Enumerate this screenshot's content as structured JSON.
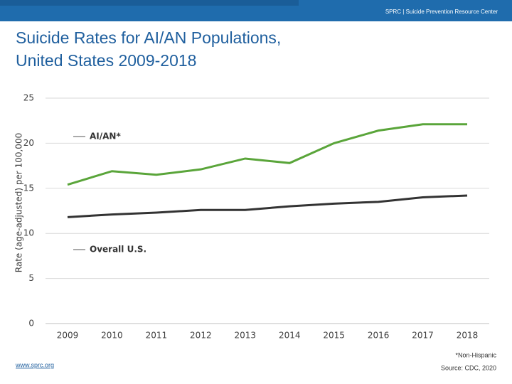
{
  "header": {
    "org": "SPRC  |  Suicide Prevention Resource Center"
  },
  "chart_data": {
    "type": "line",
    "title": "Suicide Rates for AI/AN Populations,",
    "subtitle": "United States 2009-2018",
    "y_label": "Rate (age-adjusted) per 100,000",
    "categories": [
      "2009",
      "2010",
      "2011",
      "2012",
      "2013",
      "2014",
      "2015",
      "2016",
      "2017",
      "2018"
    ],
    "series": [
      {
        "name": "AI/AN*",
        "color": "#5aa53a",
        "values": [
          15.4,
          16.9,
          16.5,
          17.1,
          18.3,
          17.8,
          20.0,
          21.4,
          22.1,
          22.1
        ]
      },
      {
        "name": "Overall U.S.",
        "color": "#333333",
        "values": [
          11.8,
          12.1,
          12.3,
          12.6,
          12.6,
          13.0,
          13.3,
          13.5,
          14.0,
          14.2
        ]
      }
    ],
    "ylim": [
      0,
      25
    ],
    "yticks": [
      0,
      5,
      10,
      15,
      20,
      25
    ],
    "grid": true
  },
  "footer": {
    "note": "*Non-Hispanic",
    "source": "Source: CDC, 2020",
    "url": "www.sprc.org"
  }
}
